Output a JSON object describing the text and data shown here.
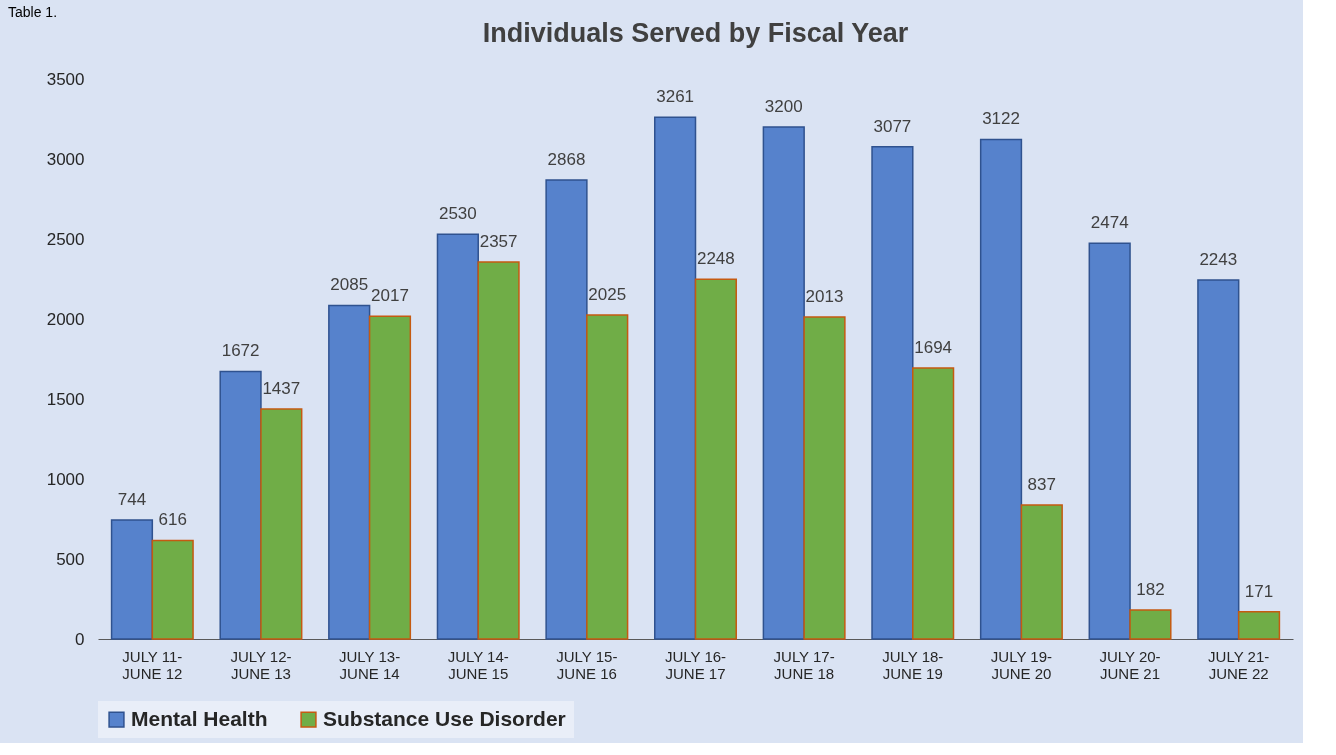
{
  "chart_data": {
    "type": "bar",
    "title": "Individuals Served by Fiscal Year",
    "annotations": [
      "Table 1."
    ],
    "categories": [
      "JULY 11-\nJUNE 12",
      "JULY 12-\nJUNE 13",
      "JULY 13-\nJUNE 14",
      "JULY 14-\nJUNE 15",
      "JULY 15-\nJUNE 16",
      "JULY 16-\nJUNE 17",
      "JULY 17-\nJUNE 18",
      "JULY 18-\nJUNE 19",
      "JULY 19-\nJUNE 20",
      "JULY 20-\nJUNE 21",
      "JULY 21-\nJUNE 22"
    ],
    "series": [
      {
        "name": "Mental Health",
        "color": "#5682cc",
        "values": [
          744,
          1672,
          2085,
          2530,
          2868,
          3261,
          3200,
          3077,
          3122,
          2474,
          2243
        ]
      },
      {
        "name": "Substance Use Disorder",
        "color": "#70ad47",
        "values": [
          616,
          1437,
          2017,
          2357,
          2025,
          2248,
          2013,
          1694,
          837,
          182,
          171
        ]
      }
    ],
    "ylim": [
      0,
      3500
    ],
    "yticks": [
      0,
      500,
      1000,
      1500,
      2000,
      2500,
      3000,
      3500
    ],
    "grid": false,
    "legend": "bottom",
    "data_labels": true
  }
}
